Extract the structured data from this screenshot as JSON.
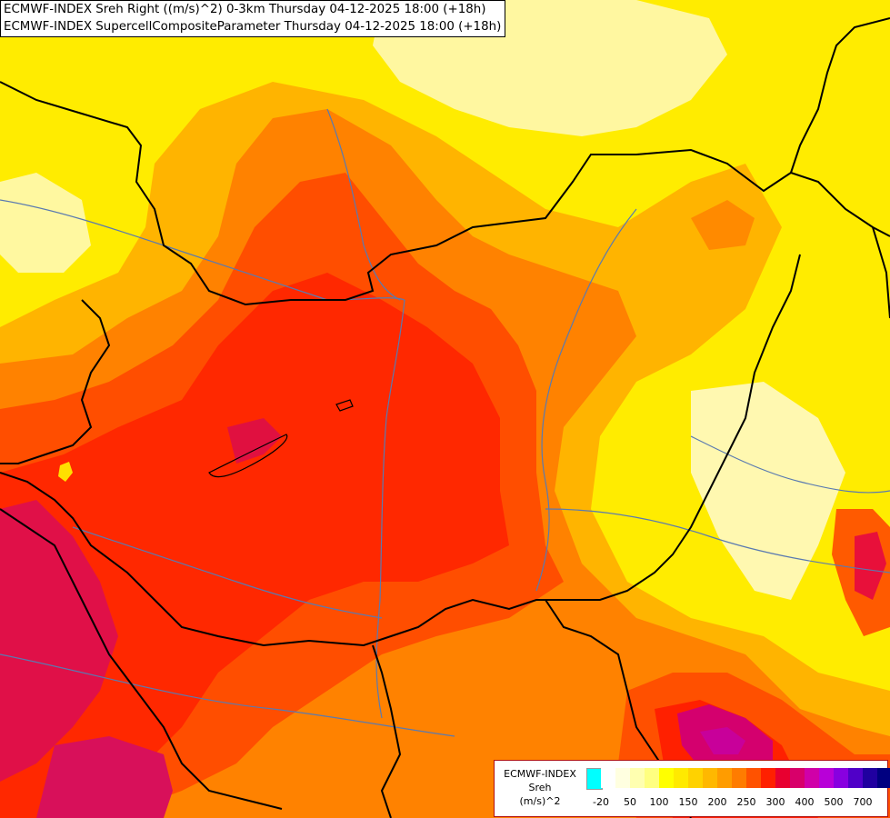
{
  "header": {
    "line1": "ECMWF-INDEX Sreh Right ((m/s)^2) 0-3km Thursday 04-12-2025 18:00 (+18h)",
    "line2": "ECMWF-INDEX SupercellCompositeParameter Thursday 04-12-2025 18:00 (+18h)"
  },
  "legend": {
    "line1": "ECMWF-INDEX",
    "line2": "Sreh",
    "line3": "(m/s)^2",
    "colors": [
      "#00ffff",
      "#ffffff",
      "#ffffe0",
      "#ffffb0",
      "#ffff80",
      "#ffff00",
      "#ffea00",
      "#ffd200",
      "#ffb800",
      "#ff9c00",
      "#ff7c00",
      "#ff5200",
      "#ff2000",
      "#e80030",
      "#d8006a",
      "#d000a8",
      "#b800d8",
      "#8800e0",
      "#5000c8",
      "#2000a0",
      "#000080"
    ],
    "ticks": [
      "-20",
      "50",
      "100",
      "150",
      "200",
      "250",
      "300",
      "400",
      "500",
      "700"
    ]
  },
  "colors": {
    "yellow": "#ffec00",
    "pale_yellow": "#ffffa0",
    "orange": "#ffb000",
    "dark_orange": "#ff7a00",
    "red_orange": "#ff4a00",
    "red": "#ff2200",
    "crimson": "#e0104a",
    "magenta": "#d0007a",
    "border": "#000000",
    "river": "#5a7ab0"
  }
}
